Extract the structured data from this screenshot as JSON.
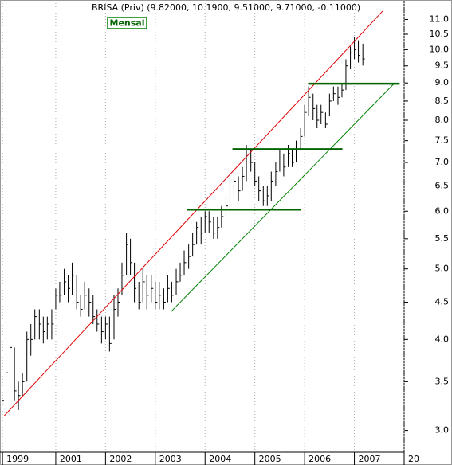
{
  "chart_data": {
    "type": "ohlc",
    "title": "BRISA (Priv) (9.82000, 10.1900, 9.51000, 9.71000, -0.11000)",
    "badge": "Mensal",
    "log_scale": true,
    "grid": true,
    "bar_color": "#000000",
    "xlim": [
      1999.88,
      2008.0
    ],
    "ylim": [
      2.8,
      11.7
    ],
    "xticks": [
      {
        "value": 1999.93,
        "label": "1999"
      },
      2001,
      2002,
      2003,
      2004,
      2005,
      2006,
      2007,
      {
        "value": 2008,
        "label": "20"
      }
    ],
    "yticks": [
      {
        "value": 3,
        "label": "3.0"
      },
      3.5,
      {
        "value": 4,
        "label": "4.0"
      },
      4.5,
      {
        "value": 5,
        "label": "5.0"
      },
      5.5,
      {
        "value": 6,
        "label": "6.0"
      },
      6.5,
      {
        "value": 7,
        "label": "7.0"
      },
      7.5,
      {
        "value": 8,
        "label": "8.0"
      },
      8.5,
      {
        "value": 9,
        "label": "9.0"
      },
      9.5,
      {
        "value": 10,
        "label": "10.0"
      },
      10.5,
      {
        "value": 11,
        "label": "11.0"
      }
    ],
    "x": [
      1999.92,
      2000.0,
      2000.08,
      2000.17,
      2000.25,
      2000.33,
      2000.42,
      2000.5,
      2000.58,
      2000.67,
      2000.75,
      2000.83,
      2000.92,
      2001.0,
      2001.08,
      2001.17,
      2001.25,
      2001.33,
      2001.42,
      2001.5,
      2001.58,
      2001.67,
      2001.75,
      2001.83,
      2001.92,
      2002.0,
      2002.08,
      2002.17,
      2002.25,
      2002.33,
      2002.42,
      2002.5,
      2002.58,
      2002.67,
      2002.75,
      2002.83,
      2002.92,
      2003.0,
      2003.08,
      2003.17,
      2003.25,
      2003.33,
      2003.42,
      2003.5,
      2003.58,
      2003.67,
      2003.75,
      2003.83,
      2003.92,
      2004.0,
      2004.08,
      2004.17,
      2004.25,
      2004.33,
      2004.42,
      2004.5,
      2004.58,
      2004.67,
      2004.75,
      2004.83,
      2004.92,
      2005.0,
      2005.08,
      2005.17,
      2005.25,
      2005.33,
      2005.42,
      2005.5,
      2005.58,
      2005.67,
      2005.75,
      2005.83,
      2005.92,
      2006.0,
      2006.08,
      2006.17,
      2006.25,
      2006.33,
      2006.42,
      2006.5,
      2006.58,
      2006.67,
      2006.75,
      2006.83,
      2006.92,
      2007.0,
      2007.08,
      2007.17
    ],
    "high": [
      3.6,
      3.9,
      4.0,
      3.9,
      3.5,
      3.6,
      4.1,
      4.2,
      4.4,
      4.4,
      4.3,
      4.3,
      4.4,
      4.7,
      4.8,
      5.0,
      4.9,
      5.1,
      4.9,
      4.6,
      4.8,
      4.7,
      4.6,
      4.4,
      4.3,
      4.3,
      4.3,
      4.6,
      4.7,
      5.1,
      5.6,
      5.5,
      5.1,
      4.8,
      5.0,
      4.9,
      4.9,
      4.8,
      4.8,
      4.7,
      4.9,
      4.8,
      5.0,
      5.1,
      5.3,
      5.4,
      5.6,
      5.8,
      5.9,
      6.0,
      6.0,
      5.9,
      5.9,
      6.1,
      6.3,
      6.7,
      6.8,
      6.7,
      6.9,
      7.4,
      7.3,
      7.0,
      6.7,
      6.5,
      6.5,
      6.8,
      7.0,
      7.3,
      7.2,
      7.4,
      7.3,
      7.5,
      7.8,
      8.4,
      8.9,
      8.7,
      8.4,
      8.4,
      8.2,
      8.7,
      8.9,
      8.9,
      9.0,
      9.7,
      10.1,
      10.4,
      10.3,
      10.19
    ],
    "low": [
      3.15,
      3.3,
      3.5,
      3.3,
      3.2,
      3.35,
      3.5,
      3.8,
      4.0,
      4.0,
      3.95,
      4.0,
      4.0,
      4.4,
      4.5,
      4.6,
      4.5,
      4.6,
      4.4,
      4.3,
      4.4,
      4.3,
      4.2,
      4.1,
      3.95,
      4.0,
      3.85,
      4.0,
      4.3,
      4.6,
      4.9,
      4.9,
      4.5,
      4.4,
      4.5,
      4.4,
      4.5,
      4.4,
      4.4,
      4.4,
      4.5,
      4.5,
      4.6,
      4.8,
      4.9,
      5.0,
      5.2,
      5.4,
      5.4,
      5.6,
      5.6,
      5.5,
      5.5,
      5.7,
      5.9,
      6.0,
      6.3,
      6.2,
      6.4,
      6.6,
      6.8,
      6.5,
      6.2,
      6.1,
      6.1,
      6.2,
      6.5,
      6.8,
      6.7,
      6.9,
      6.9,
      7.0,
      7.3,
      7.6,
      8.1,
      8.0,
      7.8,
      7.9,
      7.8,
      8.1,
      8.5,
      8.4,
      8.6,
      8.8,
      9.4,
      9.7,
      9.6,
      9.51
    ],
    "close": [
      3.3,
      3.6,
      3.9,
      3.4,
      3.35,
      3.5,
      4.0,
      4.0,
      4.3,
      4.2,
      4.1,
      4.2,
      4.2,
      4.6,
      4.6,
      4.8,
      4.7,
      4.9,
      4.5,
      4.4,
      4.6,
      4.5,
      4.3,
      4.2,
      4.1,
      4.2,
      3.95,
      4.4,
      4.5,
      4.9,
      5.4,
      5.1,
      4.7,
      4.5,
      4.8,
      4.6,
      4.7,
      4.5,
      4.6,
      4.5,
      4.7,
      4.6,
      4.8,
      4.9,
      5.1,
      5.2,
      5.4,
      5.7,
      5.6,
      5.9,
      5.8,
      5.6,
      5.7,
      5.9,
      6.1,
      6.5,
      6.6,
      6.4,
      6.7,
      7.3,
      7.0,
      6.6,
      6.4,
      6.2,
      6.3,
      6.6,
      6.8,
      7.1,
      6.9,
      7.2,
      7.0,
      7.3,
      7.6,
      8.2,
      8.6,
      8.3,
      8.0,
      8.2,
      7.9,
      8.5,
      8.7,
      8.6,
      8.8,
      9.5,
      9.9,
      10.0,
      9.82,
      9.71
    ],
    "lines": [
      {
        "color": "#e00000",
        "width": 1,
        "x": [
          1999.96,
          2007.57
        ],
        "y": [
          3.14,
          11.3
        ]
      },
      {
        "color": "#008000",
        "width": 1,
        "x": [
          2003.32,
          2007.81
        ],
        "y": [
          4.37,
          9.0
        ]
      },
      {
        "color": "#006400",
        "width": 2.5,
        "x": [
          2003.64,
          2005.93
        ],
        "y": [
          6.03,
          6.03
        ]
      },
      {
        "color": "#006400",
        "width": 2.5,
        "x": [
          2004.55,
          2006.76
        ],
        "y": [
          7.3,
          7.3
        ]
      },
      {
        "color": "#006400",
        "width": 2.5,
        "x": [
          2006.07,
          2007.91
        ],
        "y": [
          8.98,
          8.98
        ]
      }
    ]
  }
}
